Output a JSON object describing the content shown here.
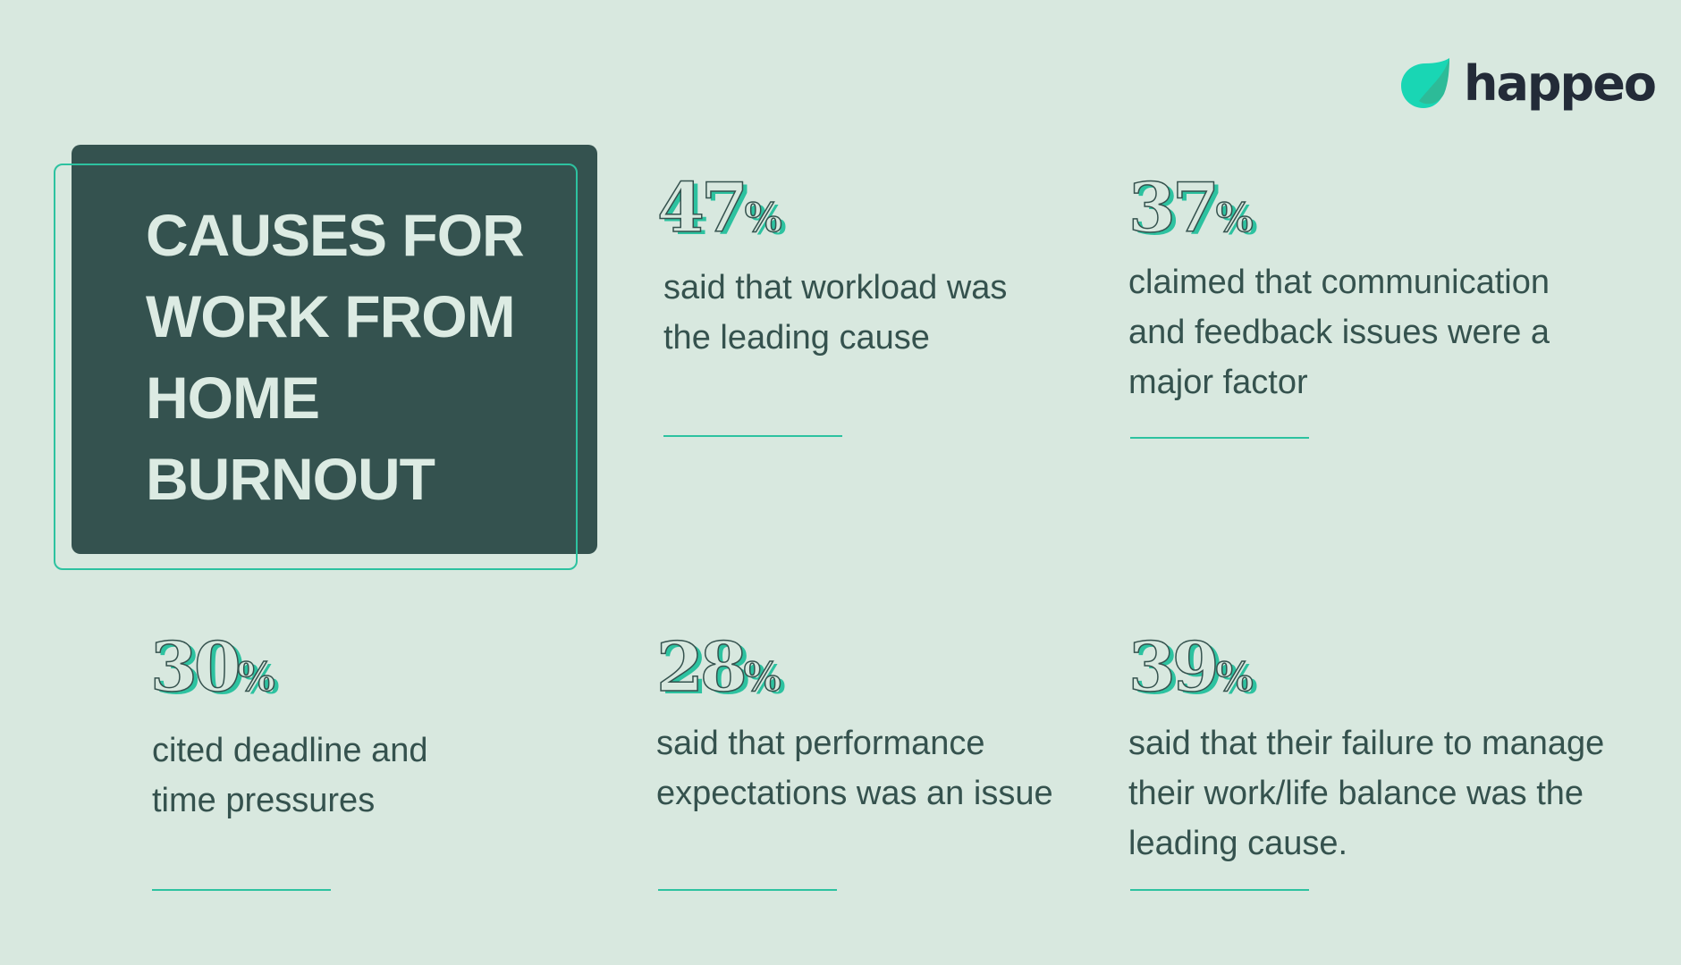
{
  "brand": {
    "name": "happeo",
    "accent": "#2dc2a0",
    "dark": "#34524f",
    "background": "#d8e8df"
  },
  "title": "CAUSES FOR WORK FROM HOME BURNOUT",
  "stats": [
    {
      "value": "47",
      "unit": "%",
      "text": "said that workload was the leading cause"
    },
    {
      "value": "37",
      "unit": "%",
      "text": "claimed that communication and feedback issues were a major factor"
    },
    {
      "value": "30",
      "unit": "%",
      "text": "cited deadline and time pressures"
    },
    {
      "value": "28",
      "unit": "%",
      "text": "said that performance expectations was an issue"
    },
    {
      "value": "39",
      "unit": "%",
      "text": "said that their failure to manage their work/life balance was the leading cause."
    }
  ]
}
